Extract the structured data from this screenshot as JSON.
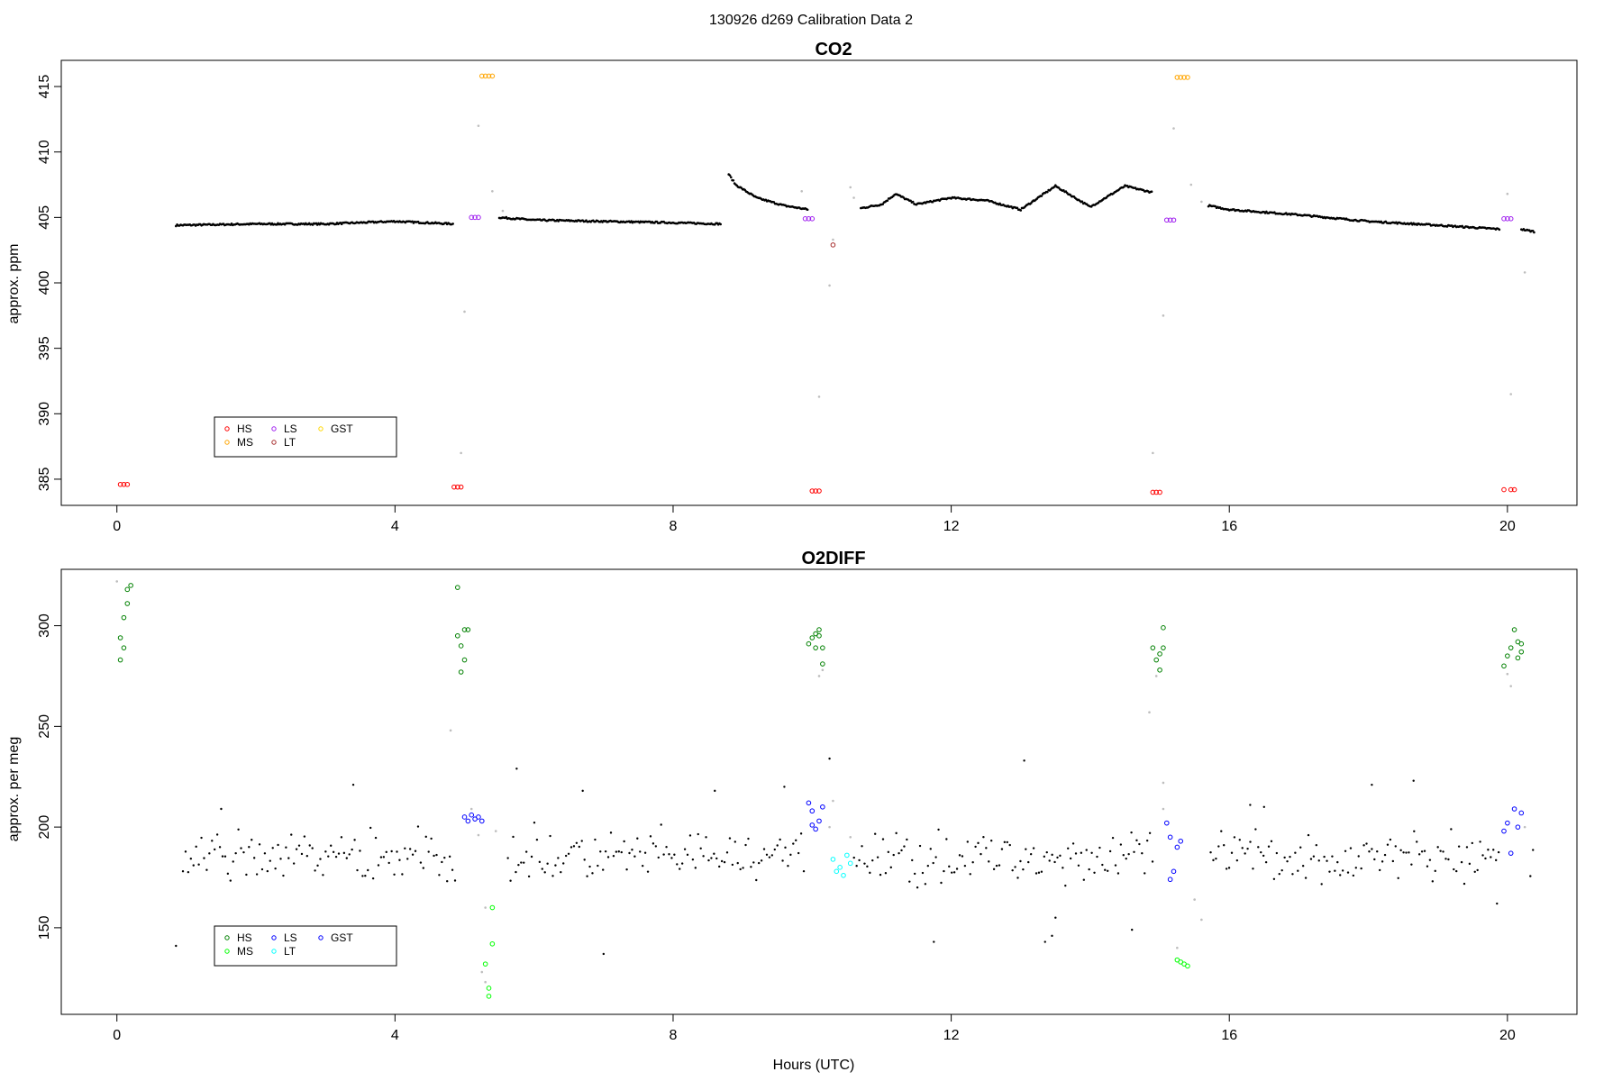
{
  "figure_title": "130926   d269   Calibration Data 2",
  "xlabel": "Hours (UTC)",
  "colors": {
    "HS": "#ff0000",
    "MS": "#ffa500",
    "LS": "#a020f0",
    "LT": "#a52a2a",
    "GST": "#ffd700",
    "O2_HS": "#008000",
    "O2_MS": "#00ff00",
    "O2_LS": "#0000ff",
    "O2_LT": "#00ffff",
    "O2_GST": "#0000ff",
    "data": "#000000",
    "flagged": "#bebebe"
  },
  "chart_data": [
    {
      "type": "scatter",
      "title": "CO2",
      "ylabel": "approx. ppm",
      "xlim": [
        -0.8,
        21.0
      ],
      "ylim": [
        383,
        417
      ],
      "xticks": [
        0,
        4,
        8,
        12,
        16,
        20
      ],
      "yticks": [
        385,
        390,
        395,
        400,
        405,
        410,
        415
      ],
      "legend": {
        "placement": "bottom-left",
        "entries": [
          "HS",
          "MS",
          "LS",
          "LT",
          "GST"
        ],
        "colors": [
          "#ff0000",
          "#ffa500",
          "#a020f0",
          "#a52a2a",
          "#ffd700"
        ]
      },
      "calibration_points": {
        "HS": [
          [
            0.05,
            384.6
          ],
          [
            0.1,
            384.6
          ],
          [
            0.15,
            384.6
          ],
          [
            4.85,
            384.4
          ],
          [
            4.9,
            384.4
          ],
          [
            4.95,
            384.4
          ],
          [
            10.0,
            384.1
          ],
          [
            10.05,
            384.1
          ],
          [
            10.1,
            384.1
          ],
          [
            14.9,
            384.0
          ],
          [
            14.95,
            384.0
          ],
          [
            15.0,
            384.0
          ],
          [
            19.95,
            384.2
          ],
          [
            20.05,
            384.2
          ],
          [
            20.1,
            384.2
          ]
        ],
        "MS": [
          [
            5.25,
            415.8
          ],
          [
            5.3,
            415.8
          ],
          [
            5.35,
            415.8
          ],
          [
            5.4,
            415.8
          ],
          [
            15.25,
            415.7
          ],
          [
            15.3,
            415.7
          ],
          [
            15.35,
            415.7
          ],
          [
            15.4,
            415.7
          ]
        ],
        "LS": [
          [
            5.1,
            405.0
          ],
          [
            5.15,
            405.0
          ],
          [
            5.2,
            405.0
          ],
          [
            9.9,
            404.9
          ],
          [
            9.95,
            404.9
          ],
          [
            10.0,
            404.9
          ],
          [
            15.1,
            404.8
          ],
          [
            15.15,
            404.8
          ],
          [
            15.2,
            404.8
          ],
          [
            19.95,
            404.9
          ],
          [
            20.0,
            404.9
          ],
          [
            20.05,
            404.9
          ]
        ],
        "LT": [
          [
            10.3,
            402.9
          ]
        ],
        "GST": []
      },
      "segments": [
        {
          "x": [
            0.85,
            2.0,
            3.0,
            4.0,
            4.85
          ],
          "y": [
            404.4,
            404.5,
            404.5,
            404.7,
            404.5
          ]
        },
        {
          "x": [
            5.5,
            6.0,
            7.0,
            8.0,
            8.7
          ],
          "y": [
            405.0,
            404.8,
            404.7,
            404.6,
            404.5
          ]
        },
        {
          "x": [
            8.8,
            8.9,
            9.2,
            9.6,
            9.95
          ],
          "y": [
            408.3,
            407.5,
            406.5,
            405.9,
            405.6
          ]
        },
        {
          "x": [
            10.7,
            11.0,
            11.2,
            11.5,
            12.0,
            12.5,
            13.0,
            13.5,
            14.0,
            14.5,
            14.9
          ],
          "y": [
            405.7,
            406.0,
            406.8,
            406.0,
            406.5,
            406.3,
            405.6,
            407.4,
            405.8,
            407.4,
            406.9
          ]
        },
        {
          "x": [
            15.7,
            16.0,
            17.0,
            18.0,
            19.0,
            19.9
          ],
          "y": [
            405.9,
            405.6,
            405.2,
            404.7,
            404.4,
            404.1
          ]
        },
        {
          "x": [
            20.2,
            20.4
          ],
          "y": [
            404.1,
            403.9
          ]
        }
      ],
      "flagged_points": [
        [
          4.95,
          387.0
        ],
        [
          5.0,
          397.8
        ],
        [
          5.2,
          412.0
        ],
        [
          5.4,
          407.0
        ],
        [
          5.55,
          405.5
        ],
        [
          9.85,
          407.0
        ],
        [
          10.1,
          391.3
        ],
        [
          10.25,
          399.8
        ],
        [
          10.3,
          403.3
        ],
        [
          10.55,
          407.3
        ],
        [
          10.6,
          406.5
        ],
        [
          14.9,
          387.0
        ],
        [
          15.05,
          397.5
        ],
        [
          15.2,
          411.8
        ],
        [
          15.45,
          407.5
        ],
        [
          15.6,
          406.2
        ],
        [
          20.0,
          406.8
        ],
        [
          20.05,
          391.5
        ],
        [
          20.25,
          400.8
        ]
      ]
    },
    {
      "type": "scatter",
      "title": "O2DIFF",
      "ylabel": "approx. per meg",
      "xlim": [
        -0.8,
        21.0
      ],
      "ylim": [
        107,
        328
      ],
      "xticks": [
        0,
        4,
        8,
        12,
        16,
        20
      ],
      "yticks": [
        150,
        200,
        250,
        300
      ],
      "legend": {
        "placement": "bottom-left",
        "entries": [
          "HS",
          "MS",
          "LS",
          "LT",
          "GST"
        ],
        "colors": [
          "#008000",
          "#00ff00",
          "#0000ff",
          "#00ffff",
          "#0000ff"
        ]
      },
      "calibration_points": {
        "HS": [
          [
            0.05,
            283
          ],
          [
            0.05,
            294
          ],
          [
            0.1,
            289
          ],
          [
            0.1,
            304
          ],
          [
            0.15,
            311
          ],
          [
            0.15,
            318
          ],
          [
            0.2,
            320
          ],
          [
            4.9,
            319
          ],
          [
            4.9,
            295
          ],
          [
            4.95,
            290
          ],
          [
            4.95,
            277
          ],
          [
            5.0,
            283
          ],
          [
            5.0,
            298
          ],
          [
            5.05,
            298
          ],
          [
            9.95,
            291
          ],
          [
            10.0,
            294
          ],
          [
            10.05,
            296
          ],
          [
            10.05,
            289
          ],
          [
            10.1,
            295
          ],
          [
            10.1,
            298
          ],
          [
            10.15,
            281
          ],
          [
            10.15,
            289
          ],
          [
            14.9,
            289
          ],
          [
            14.95,
            283
          ],
          [
            15.0,
            278
          ],
          [
            15.0,
            286
          ],
          [
            15.05,
            299
          ],
          [
            15.05,
            289
          ],
          [
            19.95,
            280
          ],
          [
            20.0,
            285
          ],
          [
            20.05,
            289
          ],
          [
            20.1,
            298
          ],
          [
            20.15,
            292
          ],
          [
            20.15,
            284
          ],
          [
            20.2,
            287
          ],
          [
            20.2,
            291
          ]
        ],
        "MS": [
          [
            5.3,
            132
          ],
          [
            5.35,
            116
          ],
          [
            5.4,
            142
          ],
          [
            5.4,
            160
          ],
          [
            5.35,
            120
          ],
          [
            15.25,
            134
          ],
          [
            15.3,
            133
          ],
          [
            15.35,
            132
          ],
          [
            15.4,
            131
          ]
        ],
        "LS": [
          [
            5.0,
            205
          ],
          [
            5.05,
            203
          ],
          [
            5.1,
            206
          ],
          [
            5.15,
            204
          ],
          [
            5.2,
            205
          ],
          [
            5.25,
            203
          ],
          [
            9.95,
            212
          ],
          [
            10.0,
            208
          ],
          [
            10.0,
            201
          ],
          [
            10.05,
            199
          ],
          [
            10.1,
            203
          ],
          [
            10.15,
            210
          ],
          [
            15.1,
            202
          ],
          [
            15.15,
            195
          ],
          [
            15.2,
            178
          ],
          [
            15.25,
            190
          ],
          [
            15.3,
            193
          ],
          [
            15.15,
            174
          ],
          [
            19.95,
            198
          ],
          [
            20.0,
            202
          ],
          [
            20.05,
            187
          ],
          [
            20.1,
            209
          ],
          [
            20.15,
            200
          ],
          [
            20.2,
            207
          ]
        ],
        "LT": [
          [
            10.3,
            184
          ],
          [
            10.35,
            178
          ],
          [
            10.4,
            180
          ],
          [
            10.45,
            176
          ],
          [
            10.5,
            186
          ],
          [
            10.55,
            182
          ]
        ],
        "GST": []
      },
      "series_data": {
        "x_start": 0.95,
        "x_end": 20.4,
        "gaps": [
          [
            4.9,
            5.6
          ],
          [
            9.9,
            10.6
          ],
          [
            14.9,
            15.7
          ],
          [
            19.9,
            20.3
          ]
        ],
        "mean": 185,
        "spread": 14
      },
      "outliers": [
        [
          0.85,
          141
        ],
        [
          1.5,
          209
        ],
        [
          3.4,
          221
        ],
        [
          5.75,
          229
        ],
        [
          6.7,
          218
        ],
        [
          7.0,
          137
        ],
        [
          8.6,
          218
        ],
        [
          9.6,
          220
        ],
        [
          10.25,
          234
        ],
        [
          11.75,
          143
        ],
        [
          13.05,
          233
        ],
        [
          13.35,
          143
        ],
        [
          13.45,
          146
        ],
        [
          13.5,
          155
        ],
        [
          14.6,
          149
        ],
        [
          16.3,
          211
        ],
        [
          16.5,
          210
        ],
        [
          18.05,
          221
        ],
        [
          18.65,
          223
        ],
        [
          19.85,
          162
        ]
      ],
      "flagged_points": [
        [
          0.0,
          322
        ],
        [
          4.8,
          248
        ],
        [
          5.1,
          209
        ],
        [
          5.2,
          196
        ],
        [
          5.3,
          160
        ],
        [
          5.25,
          128
        ],
        [
          5.3,
          123
        ],
        [
          5.45,
          198
        ],
        [
          10.1,
          275
        ],
        [
          10.15,
          278
        ],
        [
          10.3,
          213
        ],
        [
          10.25,
          200
        ],
        [
          10.55,
          195
        ],
        [
          14.85,
          257
        ],
        [
          14.95,
          275
        ],
        [
          15.05,
          222
        ],
        [
          15.05,
          209
        ],
        [
          15.25,
          140
        ],
        [
          15.5,
          164
        ],
        [
          15.6,
          154
        ],
        [
          20.0,
          276
        ],
        [
          20.05,
          270
        ],
        [
          20.25,
          200
        ]
      ]
    }
  ]
}
